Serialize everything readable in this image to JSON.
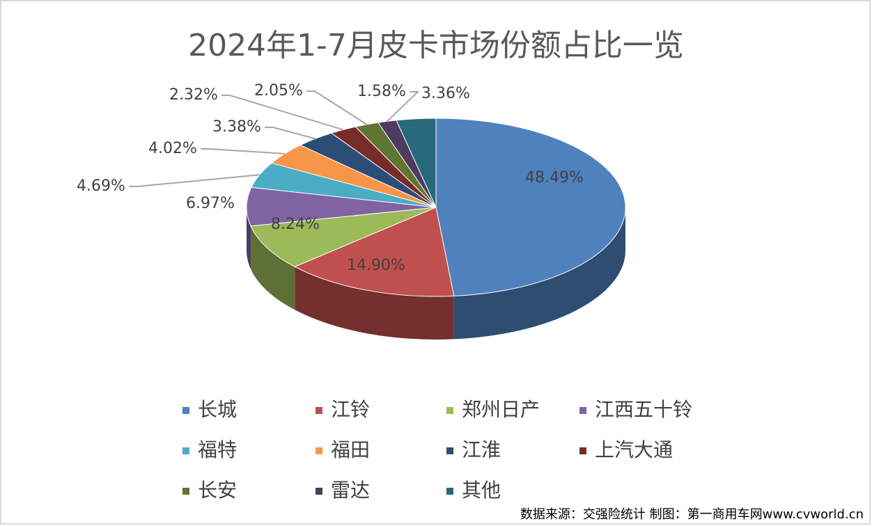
{
  "chart_data": {
    "type": "pie3d",
    "title": "2024年1-7月皮卡市场份额占比一览",
    "categories": [
      "长城",
      "江铃",
      "郑州日产",
      "江西五十铃",
      "福特",
      "福田",
      "江淮",
      "上汽大通",
      "长安",
      "雷达",
      "其他"
    ],
    "values": [
      48.49,
      14.9,
      8.24,
      6.97,
      4.69,
      4.02,
      3.38,
      2.32,
      2.05,
      1.58,
      3.36
    ],
    "value_labels": [
      "48.49%",
      "14.90%",
      "8.24%",
      "6.97%",
      "4.69%",
      "4.02%",
      "3.38%",
      "2.32%",
      "2.05%",
      "1.58%",
      "3.36%"
    ],
    "colors": [
      "#4f81bd",
      "#c0504d",
      "#9bbb59",
      "#8064a2",
      "#4bacc6",
      "#f79646",
      "#2c4d75",
      "#772c2a",
      "#5f7530",
      "#4d3b62",
      "#276a7c"
    ],
    "legend_position": "bottom",
    "source": "数据来源：交强险统计 制图：第一商用车网www.cvworld.cn"
  }
}
